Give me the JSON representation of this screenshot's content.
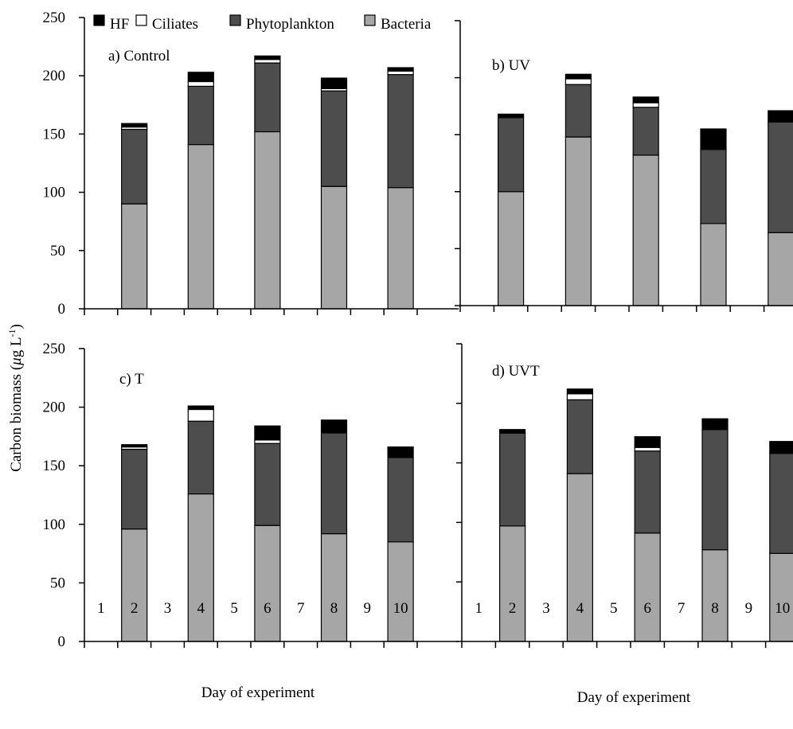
{
  "legend": [
    {
      "name": "HF",
      "color": "#000000"
    },
    {
      "name": "Ciliates",
      "color": "#ffffff"
    },
    {
      "name": "Phytoplankton",
      "color": "#4d4d4d"
    },
    {
      "name": "Bacteria",
      "color": "#a6a6a6"
    }
  ],
  "axis_titles": {
    "ylabel_main": "Carbon biomass (",
    "ylabel_mu": "μ",
    "ylabel_unit": "g L",
    "ylabel_exp": "-1",
    "ylabel_close": ")",
    "xlabel_left": "Day of experiment",
    "xlabel_right": "Day of experiment"
  },
  "chart_data": [
    {
      "type": "bar",
      "stacked": true,
      "title": "a) Control",
      "x_ticks": [
        "1",
        "2",
        "3",
        "4",
        "5",
        "6",
        "7",
        "8",
        "9",
        "10"
      ],
      "y_ticks": [
        "0",
        "50",
        "100",
        "150",
        "200",
        "250"
      ],
      "ylim": [
        0,
        250
      ],
      "categories": [
        "2",
        "4",
        "6",
        "8",
        "10"
      ],
      "series": [
        {
          "name": "Bacteria",
          "values": [
            90,
            141,
            152,
            105,
            104
          ]
        },
        {
          "name": "Phytoplankton",
          "values": [
            64,
            50,
            59,
            82,
            97
          ]
        },
        {
          "name": "Ciliates",
          "values": [
            2,
            4,
            3,
            2,
            3
          ]
        },
        {
          "name": "HF",
          "values": [
            3,
            8,
            3,
            9,
            3
          ]
        }
      ]
    },
    {
      "type": "bar",
      "stacked": true,
      "title": "b) UV",
      "x_ticks": [
        "1",
        "2",
        "3",
        "4",
        "5",
        "6",
        "7",
        "8",
        "9",
        "10"
      ],
      "y_ticks": [
        "0",
        "50",
        "100",
        "150",
        "200",
        "250"
      ],
      "ylim": [
        0,
        250
      ],
      "categories": [
        "2",
        "4",
        "6",
        "8",
        "10"
      ],
      "series": [
        {
          "name": "Bacteria",
          "values": [
            100,
            148,
            132,
            72,
            64
          ]
        },
        {
          "name": "Phytoplankton",
          "values": [
            65,
            46,
            42,
            65,
            97
          ]
        },
        {
          "name": "Ciliates",
          "values": [
            0,
            5,
            4,
            0,
            0
          ]
        },
        {
          "name": "HF",
          "values": [
            3,
            4,
            5,
            18,
            10
          ]
        }
      ]
    },
    {
      "type": "bar",
      "stacked": true,
      "title": "c) T",
      "x_ticks": [
        "1",
        "2",
        "3",
        "4",
        "5",
        "6",
        "7",
        "8",
        "9",
        "10"
      ],
      "y_ticks": [
        "0",
        "50",
        "100",
        "150",
        "200",
        "250"
      ],
      "ylim": [
        0,
        250
      ],
      "categories": [
        "2",
        "4",
        "6",
        "8",
        "10"
      ],
      "series": [
        {
          "name": "Bacteria",
          "values": [
            96,
            126,
            99,
            92,
            85
          ]
        },
        {
          "name": "Phytoplankton",
          "values": [
            68,
            62,
            70,
            86,
            72
          ]
        },
        {
          "name": "Ciliates",
          "values": [
            2,
            10,
            3,
            0,
            0
          ]
        },
        {
          "name": "HF",
          "values": [
            2,
            3,
            12,
            11,
            9
          ]
        }
      ]
    },
    {
      "type": "bar",
      "stacked": true,
      "title": "d) UVT",
      "x_ticks": [
        "1",
        "2",
        "3",
        "4",
        "5",
        "6",
        "7",
        "8",
        "9",
        "10"
      ],
      "y_ticks": [
        "0",
        "50",
        "100",
        "150",
        "200",
        "250"
      ],
      "ylim": [
        0,
        250
      ],
      "categories": [
        "2",
        "4",
        "6",
        "8",
        "10"
      ],
      "series": [
        {
          "name": "Bacteria",
          "values": [
            97,
            141,
            91,
            77,
            74
          ]
        },
        {
          "name": "Phytoplankton",
          "values": [
            78,
            62,
            69,
            101,
            84
          ]
        },
        {
          "name": "Ciliates",
          "values": [
            0,
            5,
            3,
            0,
            0
          ]
        },
        {
          "name": "HF",
          "values": [
            3,
            4,
            9,
            9,
            10
          ]
        }
      ]
    }
  ]
}
